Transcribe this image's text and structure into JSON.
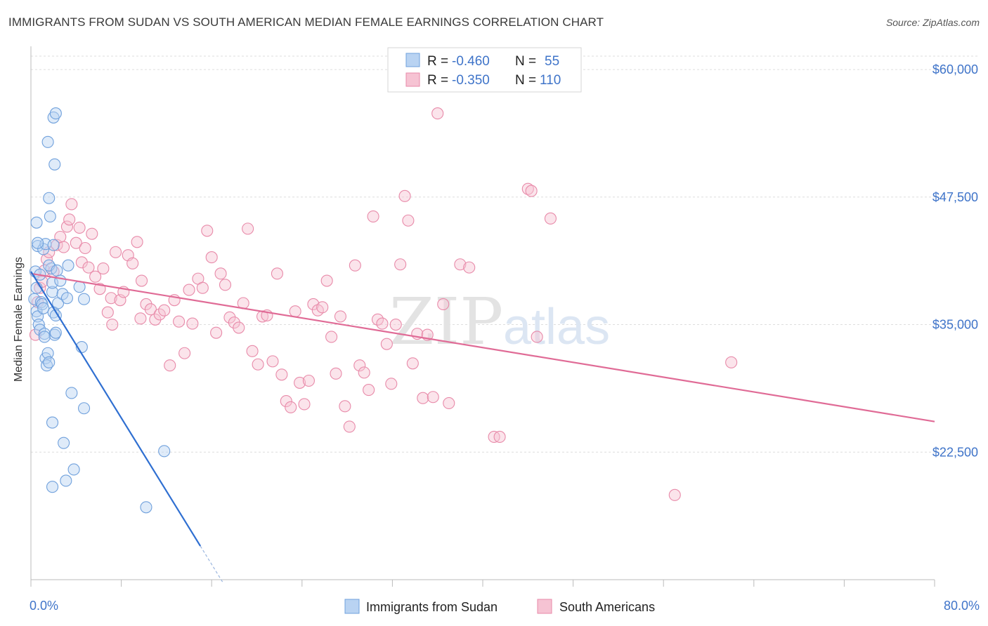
{
  "title": "IMMIGRANTS FROM SUDAN VS SOUTH AMERICAN MEDIAN FEMALE EARNINGS CORRELATION CHART",
  "source": "Source: ZipAtlas.com",
  "watermark": {
    "zip": "ZIP",
    "atlas": "atlas"
  },
  "colors": {
    "blue": "#6fa0dc",
    "blue_fill": "#b9d3f2",
    "blue_line": "#2f6fd1",
    "pink": "#e88aa9",
    "pink_fill": "#f6c3d3",
    "pink_line": "#e06b96",
    "tick_text": "#3f74c9"
  },
  "legend": {
    "rows": [
      {
        "r_label": "R = ",
        "r_value": "-0.460",
        "n_label": "N = ",
        "n_value": "55"
      },
      {
        "r_label": "R = ",
        "r_value": "-0.350",
        "n_label": "N = ",
        "n_value": "110"
      }
    ]
  },
  "bottom_legend": [
    "Immigrants from Sudan",
    "South Americans"
  ],
  "chart_data": {
    "type": "scatter",
    "title": "IMMIGRANTS FROM SUDAN VS SOUTH AMERICAN MEDIAN FEMALE EARNINGS CORRELATION CHART",
    "xlabel": "",
    "ylabel": "Median Female Earnings",
    "xlim": [
      0,
      80
    ],
    "ylim": [
      10000,
      62000
    ],
    "y_ticks": [
      22500,
      35000,
      47500,
      60000
    ],
    "y_tick_labels": [
      "$22,500",
      "$35,000",
      "$47,500",
      "$60,000"
    ],
    "x_tick_labels": [
      "0.0%",
      "80.0%"
    ],
    "grid": true,
    "legend_position": "top-center",
    "series": [
      {
        "name": "Immigrants from Sudan",
        "color": "#6fa0dc",
        "trend": {
          "x0": 0,
          "y0": 40200,
          "x1": 15,
          "y1": 13300,
          "dash_to_x": 17
        },
        "points": [
          [
            0.3,
            37500
          ],
          [
            0.5,
            38600
          ],
          [
            0.5,
            36300
          ],
          [
            0.6,
            35800
          ],
          [
            0.7,
            35000
          ],
          [
            0.8,
            34500
          ],
          [
            0.9,
            37200
          ],
          [
            1.0,
            37000
          ],
          [
            1.1,
            36600
          ],
          [
            1.2,
            34100
          ],
          [
            1.3,
            31700
          ],
          [
            1.4,
            31000
          ],
          [
            1.5,
            32200
          ],
          [
            1.6,
            31300
          ],
          [
            1.8,
            40500
          ],
          [
            1.9,
            38200
          ],
          [
            2.0,
            36200
          ],
          [
            2.1,
            34000
          ],
          [
            2.4,
            37100
          ],
          [
            0.4,
            40200
          ],
          [
            0.6,
            42700
          ],
          [
            0.5,
            45000
          ],
          [
            1.1,
            42400
          ],
          [
            1.3,
            42900
          ],
          [
            1.6,
            40800
          ],
          [
            1.9,
            39100
          ],
          [
            1.6,
            47400
          ],
          [
            1.7,
            45600
          ],
          [
            2.0,
            42800
          ],
          [
            2.3,
            40300
          ],
          [
            2.6,
            39300
          ],
          [
            2.2,
            35900
          ],
          [
            2.8,
            38000
          ],
          [
            3.3,
            40800
          ],
          [
            3.2,
            37600
          ],
          [
            2.2,
            34200
          ],
          [
            1.5,
            52900
          ],
          [
            2.0,
            55300
          ],
          [
            2.2,
            55700
          ],
          [
            2.1,
            50700
          ],
          [
            4.3,
            38700
          ],
          [
            4.7,
            37500
          ],
          [
            4.5,
            32800
          ],
          [
            3.6,
            28300
          ],
          [
            4.7,
            26800
          ],
          [
            1.9,
            25400
          ],
          [
            2.9,
            23400
          ],
          [
            3.8,
            20800
          ],
          [
            1.9,
            19100
          ],
          [
            3.1,
            19700
          ],
          [
            11.8,
            22600
          ],
          [
            10.2,
            17100
          ],
          [
            0.6,
            43000
          ],
          [
            0.8,
            39900
          ],
          [
            1.2,
            33800
          ]
        ]
      },
      {
        "name": "South Americans",
        "color": "#e88aa9",
        "trend": {
          "x0": 0,
          "y0": 40000,
          "x1": 80,
          "y1": 25500
        },
        "points": [
          [
            0.4,
            34000
          ],
          [
            0.6,
            37200
          ],
          [
            0.8,
            38600
          ],
          [
            1.0,
            39200
          ],
          [
            1.2,
            40300
          ],
          [
            1.4,
            41400
          ],
          [
            1.6,
            42100
          ],
          [
            2.0,
            40200
          ],
          [
            2.3,
            42800
          ],
          [
            2.6,
            43600
          ],
          [
            2.9,
            42600
          ],
          [
            3.2,
            44600
          ],
          [
            3.4,
            45300
          ],
          [
            3.6,
            46800
          ],
          [
            4.0,
            43000
          ],
          [
            4.3,
            44500
          ],
          [
            4.5,
            41100
          ],
          [
            4.8,
            42500
          ],
          [
            5.1,
            40600
          ],
          [
            5.4,
            43900
          ],
          [
            5.7,
            39700
          ],
          [
            6.1,
            38500
          ],
          [
            6.4,
            40500
          ],
          [
            6.8,
            36200
          ],
          [
            7.1,
            37600
          ],
          [
            7.5,
            42100
          ],
          [
            7.9,
            37400
          ],
          [
            8.2,
            38200
          ],
          [
            8.6,
            41800
          ],
          [
            9.0,
            41000
          ],
          [
            9.4,
            43100
          ],
          [
            9.8,
            39300
          ],
          [
            10.2,
            37000
          ],
          [
            10.6,
            36500
          ],
          [
            11.0,
            35500
          ],
          [
            11.4,
            36000
          ],
          [
            11.8,
            36400
          ],
          [
            12.3,
            31000
          ],
          [
            12.7,
            37400
          ],
          [
            13.1,
            35300
          ],
          [
            13.6,
            32200
          ],
          [
            14.0,
            38400
          ],
          [
            14.3,
            35100
          ],
          [
            14.8,
            39500
          ],
          [
            15.2,
            38600
          ],
          [
            15.6,
            44200
          ],
          [
            16.0,
            41600
          ],
          [
            16.4,
            34200
          ],
          [
            16.8,
            40000
          ],
          [
            17.2,
            38900
          ],
          [
            17.6,
            35700
          ],
          [
            18.0,
            35200
          ],
          [
            18.4,
            34700
          ],
          [
            18.8,
            37100
          ],
          [
            19.2,
            44400
          ],
          [
            19.6,
            32400
          ],
          [
            20.1,
            31100
          ],
          [
            20.5,
            35800
          ],
          [
            20.9,
            35900
          ],
          [
            21.4,
            31400
          ],
          [
            21.8,
            40000
          ],
          [
            22.2,
            30100
          ],
          [
            22.6,
            27500
          ],
          [
            23.0,
            26900
          ],
          [
            23.4,
            36300
          ],
          [
            23.8,
            29300
          ],
          [
            24.2,
            27200
          ],
          [
            24.6,
            29500
          ],
          [
            25.0,
            37000
          ],
          [
            25.4,
            36400
          ],
          [
            25.8,
            36700
          ],
          [
            26.2,
            39300
          ],
          [
            26.6,
            33800
          ],
          [
            27.0,
            30200
          ],
          [
            27.4,
            35800
          ],
          [
            27.8,
            27000
          ],
          [
            28.2,
            25000
          ],
          [
            28.7,
            40800
          ],
          [
            29.1,
            31000
          ],
          [
            29.5,
            30300
          ],
          [
            29.9,
            28600
          ],
          [
            30.3,
            45600
          ],
          [
            30.7,
            35500
          ],
          [
            31.1,
            35100
          ],
          [
            31.5,
            33100
          ],
          [
            31.9,
            29200
          ],
          [
            32.3,
            35000
          ],
          [
            32.7,
            40900
          ],
          [
            33.1,
            47600
          ],
          [
            33.4,
            45200
          ],
          [
            33.8,
            31200
          ],
          [
            34.2,
            34100
          ],
          [
            34.7,
            27800
          ],
          [
            35.1,
            34000
          ],
          [
            35.6,
            27900
          ],
          [
            36.0,
            55700
          ],
          [
            36.5,
            37000
          ],
          [
            37.0,
            27300
          ],
          [
            38.0,
            40900
          ],
          [
            38.8,
            40600
          ],
          [
            41.0,
            24000
          ],
          [
            41.5,
            24000
          ],
          [
            44.0,
            48300
          ],
          [
            44.3,
            48100
          ],
          [
            44.8,
            33800
          ],
          [
            46.0,
            45400
          ],
          [
            57.0,
            18300
          ],
          [
            62.0,
            31300
          ],
          [
            7.2,
            35000
          ],
          [
            9.7,
            35600
          ]
        ]
      }
    ]
  }
}
